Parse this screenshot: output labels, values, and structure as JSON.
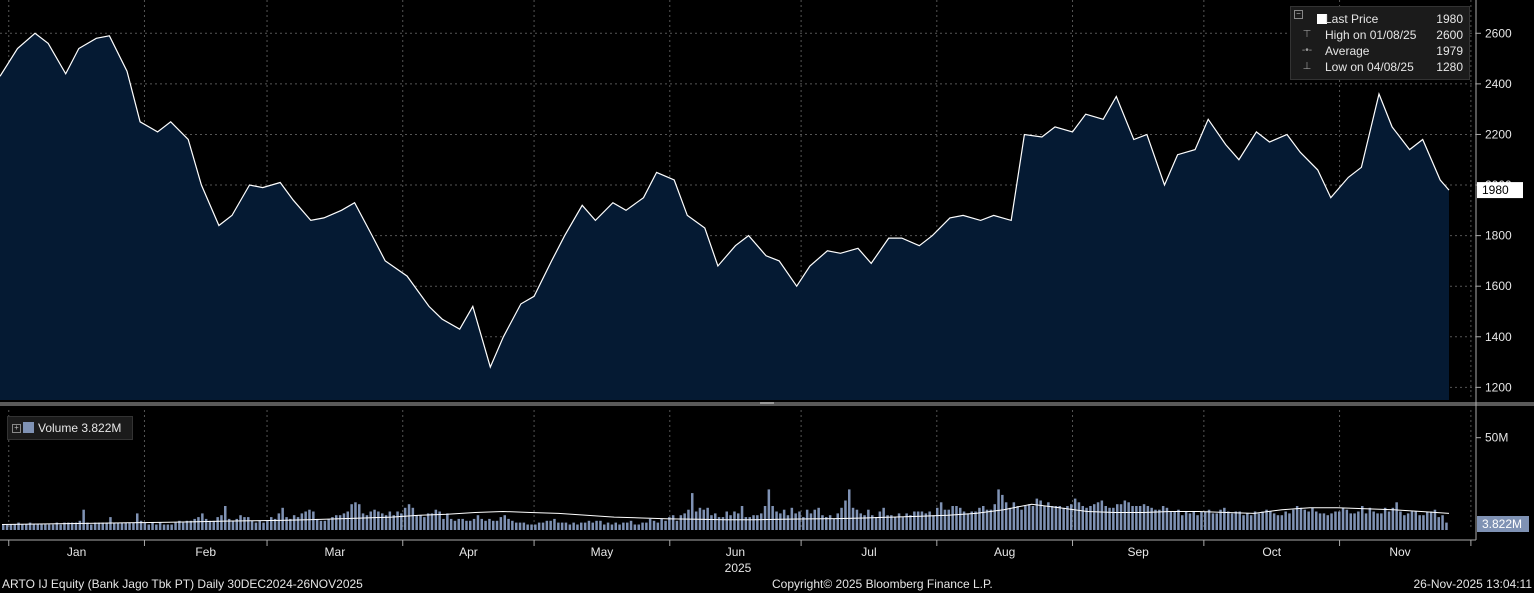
{
  "chart_data": [
    {
      "type": "area",
      "title": "",
      "xlabel": "2025",
      "ylabel": "",
      "x_range": [
        "2024-12-30",
        "2025-11-26"
      ],
      "ylim": [
        1150,
        2700
      ],
      "y_ticks": [
        1200,
        1400,
        1600,
        1800,
        2000,
        2200,
        2400,
        2600
      ],
      "x_tick_labels": [
        "Jan",
        "Feb",
        "Mar",
        "Apr",
        "May",
        "Jun",
        "Jul",
        "Aug",
        "Sep",
        "Oct",
        "Nov"
      ],
      "grid": true,
      "legend_position": "top-right",
      "last_price_marker": "1980",
      "series": [
        {
          "name": "Last Price",
          "x": [
            "2024-12-30",
            "2025-01-03",
            "2025-01-07",
            "2025-01-10",
            "2025-01-14",
            "2025-01-17",
            "2025-01-21",
            "2025-01-24",
            "2025-01-28",
            "2025-01-31",
            "2025-02-04",
            "2025-02-07",
            "2025-02-11",
            "2025-02-14",
            "2025-02-18",
            "2025-02-21",
            "2025-02-25",
            "2025-02-28",
            "2025-03-04",
            "2025-03-07",
            "2025-03-11",
            "2025-03-14",
            "2025-03-18",
            "2025-03-21",
            "2025-03-25",
            "2025-03-28",
            "2025-04-02",
            "2025-04-07",
            "2025-04-10",
            "2025-04-14",
            "2025-04-17",
            "2025-04-21",
            "2025-04-24",
            "2025-04-28",
            "2025-05-01",
            "2025-05-05",
            "2025-05-08",
            "2025-05-12",
            "2025-05-15",
            "2025-05-19",
            "2025-05-22",
            "2025-05-26",
            "2025-05-29",
            "2025-06-02",
            "2025-06-05",
            "2025-06-09",
            "2025-06-12",
            "2025-06-16",
            "2025-06-19",
            "2025-06-23",
            "2025-06-26",
            "2025-06-30",
            "2025-07-03",
            "2025-07-07",
            "2025-07-10",
            "2025-07-14",
            "2025-07-17",
            "2025-07-21",
            "2025-07-24",
            "2025-07-28",
            "2025-07-31",
            "2025-08-04",
            "2025-08-07",
            "2025-08-11",
            "2025-08-14",
            "2025-08-18",
            "2025-08-21",
            "2025-08-25",
            "2025-08-28",
            "2025-09-01",
            "2025-09-04",
            "2025-09-08",
            "2025-09-11",
            "2025-09-15",
            "2025-09-18",
            "2025-09-22",
            "2025-09-25",
            "2025-09-29",
            "2025-10-02",
            "2025-10-06",
            "2025-10-09",
            "2025-10-13",
            "2025-10-16",
            "2025-10-20",
            "2025-10-23",
            "2025-10-27",
            "2025-10-30",
            "2025-11-03",
            "2025-11-06",
            "2025-11-10",
            "2025-11-13",
            "2025-11-17",
            "2025-11-20",
            "2025-11-24",
            "2025-11-26"
          ],
          "values": [
            2430,
            2540,
            2600,
            2560,
            2440,
            2540,
            2580,
            2590,
            2450,
            2250,
            2210,
            2250,
            2180,
            2000,
            1840,
            1880,
            2000,
            1990,
            2010,
            1940,
            1860,
            1870,
            1900,
            1930,
            1800,
            1700,
            1640,
            1520,
            1470,
            1430,
            1520,
            1280,
            1400,
            1530,
            1560,
            1700,
            1800,
            1920,
            1860,
            1930,
            1900,
            1950,
            2050,
            2020,
            1880,
            1830,
            1680,
            1760,
            1800,
            1720,
            1700,
            1600,
            1680,
            1740,
            1730,
            1750,
            1690,
            1790,
            1790,
            1760,
            1800,
            1870,
            1880,
            1860,
            1880,
            1860,
            2200,
            2190,
            2230,
            2210,
            2280,
            2260,
            2350,
            2180,
            2200,
            2000,
            2120,
            2140,
            2260,
            2160,
            2100,
            2210,
            2170,
            2200,
            2130,
            2060,
            1950,
            2030,
            2070,
            2360,
            2230,
            2140,
            2180,
            2020,
            1980
          ],
          "color": "#ffffff",
          "fill": "#051a33"
        }
      ],
      "legend": [
        {
          "label": "Last Price",
          "value": "1980"
        },
        {
          "label": "High on 01/08/25",
          "value": "2600"
        },
        {
          "label": "Average",
          "value": "1979"
        },
        {
          "label": "Low on 04/08/25",
          "value": "1280"
        }
      ]
    },
    {
      "type": "bar",
      "title": "",
      "xlabel": "",
      "ylabel": "",
      "ylim": [
        0,
        65
      ],
      "y_tick_labels": [
        "50M"
      ],
      "legend_position": "top-left",
      "legend": [
        {
          "label": "Volume",
          "value": "3.822M"
        }
      ],
      "last_value_marker": "3.822M",
      "series": [
        {
          "name": "Volume",
          "unit": "M",
          "values": [
            3,
            3,
            3,
            3,
            4,
            3,
            3,
            4,
            3,
            3,
            3,
            3,
            3,
            3,
            4,
            3,
            4,
            4,
            4,
            4,
            5,
            11,
            4,
            3,
            4,
            4,
            4,
            4,
            7,
            4,
            4,
            4,
            4,
            4,
            4,
            9,
            5,
            4,
            3,
            4,
            3,
            4,
            3,
            3,
            3,
            4,
            5,
            4,
            5,
            5,
            6,
            7,
            9,
            6,
            5,
            5,
            7,
            8,
            13,
            6,
            5,
            6,
            8,
            7,
            7,
            5,
            4,
            5,
            4,
            5,
            7,
            6,
            9,
            12,
            7,
            6,
            8,
            7,
            9,
            10,
            11,
            10,
            6,
            5,
            5,
            6,
            7,
            8,
            8,
            9,
            10,
            14,
            15,
            14,
            9,
            8,
            10,
            11,
            10,
            9,
            8,
            10,
            8,
            10,
            9,
            12,
            14,
            12,
            8,
            8,
            7,
            9,
            9,
            11,
            10,
            6,
            9,
            6,
            5,
            6,
            6,
            5,
            5,
            6,
            8,
            6,
            5,
            6,
            5,
            5,
            7,
            8,
            6,
            5,
            4,
            4,
            4,
            3,
            3,
            3,
            4,
            4,
            5,
            5,
            6,
            4,
            4,
            4,
            3,
            4,
            3,
            4,
            4,
            5,
            4,
            5,
            5,
            3,
            4,
            3,
            4,
            3,
            4,
            4,
            5,
            3,
            3,
            4,
            4,
            6,
            5,
            4,
            6,
            5,
            7,
            8,
            5,
            8,
            9,
            11,
            20,
            10,
            12,
            11,
            12,
            8,
            9,
            7,
            7,
            10,
            8,
            10,
            9,
            13,
            7,
            7,
            8,
            8,
            9,
            13,
            22,
            13,
            10,
            9,
            11,
            8,
            12,
            9,
            10,
            7,
            11,
            9,
            11,
            12,
            8,
            7,
            8,
            6,
            9,
            12,
            16,
            22,
            12,
            11,
            9,
            8,
            11,
            8,
            7,
            10,
            12,
            8,
            8,
            7,
            9,
            7,
            9,
            8,
            10,
            10,
            10,
            9,
            10,
            8,
            12,
            15,
            11,
            11,
            13,
            13,
            12,
            10,
            9,
            10,
            10,
            12,
            13,
            11,
            11,
            14,
            22,
            19,
            15,
            12,
            15,
            13,
            11,
            13,
            14,
            13,
            17,
            16,
            13,
            15,
            13,
            13,
            13,
            12,
            13,
            14,
            17,
            15,
            13,
            12,
            13,
            14,
            15,
            16,
            13,
            12,
            12,
            14,
            14,
            16,
            15,
            13,
            13,
            13,
            14,
            13,
            12,
            11,
            11,
            13,
            12,
            10,
            10,
            11,
            8,
            10,
            9,
            10,
            8,
            10,
            10,
            11,
            9,
            9,
            11,
            12,
            10,
            9,
            10,
            10,
            8,
            9,
            8,
            10,
            9,
            10,
            11,
            10,
            9,
            8,
            8,
            10,
            9,
            11,
            13,
            12,
            11,
            10,
            12,
            10,
            9,
            9,
            8,
            9,
            10,
            10,
            12,
            11,
            9,
            9,
            10,
            13,
            9,
            12,
            10,
            9,
            9,
            12,
            10,
            12,
            15,
            10,
            8,
            9,
            10,
            10,
            8,
            8,
            10,
            10,
            11,
            7,
            8,
            4
          ],
          "color": "#7f92b4"
        },
        {
          "name": "",
          "type": "line",
          "values": [
            3,
            3.2,
            3.4,
            3.6,
            3.8,
            4,
            4.2,
            4.5,
            4.8,
            5,
            5.2,
            5.6,
            6,
            6.5,
            7,
            8,
            8.5,
            9.5,
            10,
            9.5,
            9,
            8,
            7,
            6.5,
            6,
            5.8,
            5.5,
            5.5,
            5.8,
            6,
            6.2,
            6.5,
            7,
            7.5,
            8,
            9,
            11,
            14,
            12,
            10,
            9.5,
            9.5,
            10,
            10,
            9.5,
            9,
            11,
            12,
            12,
            11.5,
            11,
            10,
            9
          ]
        }
      ]
    }
  ],
  "footer": {
    "left": "ARTO IJ Equity (Bank Jago Tbk PT) Daily 30DEC2024-26NOV2025",
    "center": "Copyright© 2025 Bloomberg Finance L.P.",
    "right": "26-Nov-2025 13:04:11"
  }
}
